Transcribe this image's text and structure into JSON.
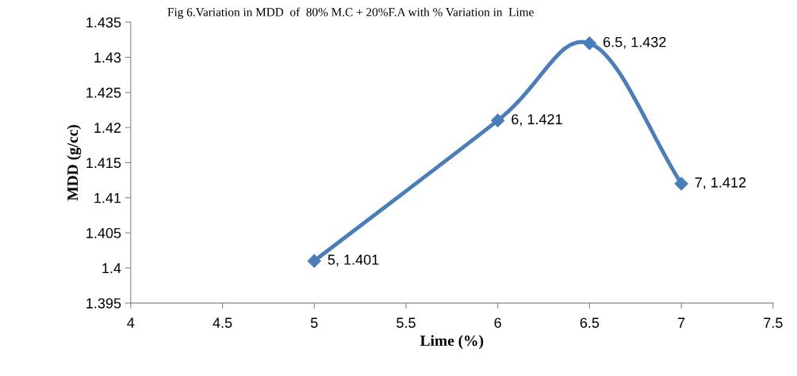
{
  "chart_data": {
    "type": "line",
    "title": "Fig 6.Variation in MDD  of  80% M.C + 20%F.A with % Variation in  Lime",
    "xlabel": "Lime (%)",
    "ylabel": "MDD (g/cc)",
    "series": [
      {
        "color": "#4a7ebb",
        "x": [
          5,
          6,
          6.5,
          7
        ],
        "values": [
          1.401,
          1.421,
          1.432,
          1.412
        ],
        "value_labels": [
          "5, 1.401",
          "6, 1.421",
          "6.5, 1.432",
          "7, 1.412"
        ]
      }
    ],
    "xlim": [
      4,
      7.5
    ],
    "xticks": [
      4,
      4.5,
      5,
      5.5,
      6,
      6.5,
      7,
      7.5
    ],
    "ylim": [
      1.395,
      1.435
    ],
    "yticks": [
      {
        "value": 1.395,
        "label": "1.395"
      },
      {
        "value": 1.4,
        "label": "1.4"
      },
      {
        "value": 1.405,
        "label": "1.405"
      },
      {
        "value": 1.41,
        "label": "1.41"
      },
      {
        "value": 1.415,
        "label": "1.415"
      },
      {
        "value": 1.42,
        "label": "1.42"
      },
      {
        "value": 1.425,
        "label": "1.425"
      },
      {
        "value": 1.43,
        "label": "1.43"
      },
      {
        "value": 1.435,
        "label": "1.435"
      }
    ],
    "grid": false,
    "legend": false,
    "marker": "diamond",
    "line_style": "solid"
  }
}
